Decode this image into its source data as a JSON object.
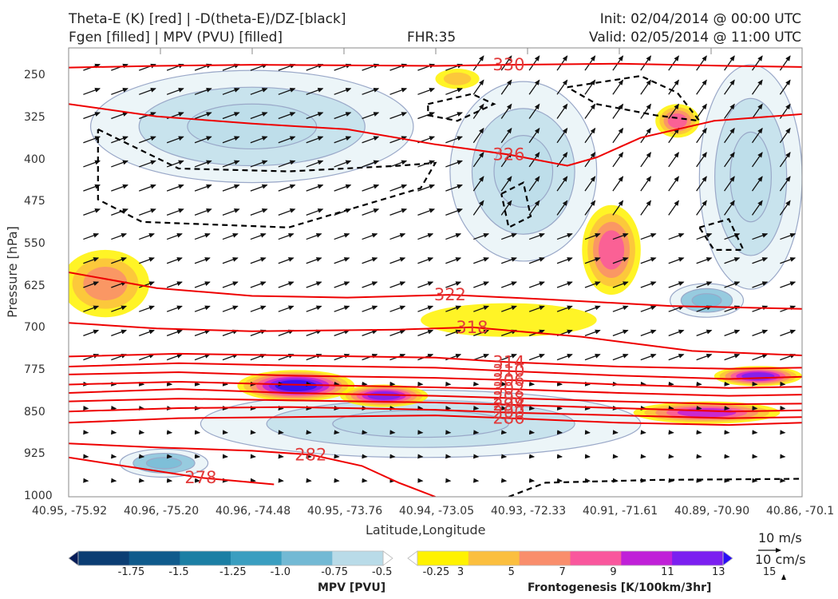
{
  "header": {
    "line1": "Theta-E (K) [red] | -D(theta-E)/DZ-[black]",
    "line2": "Fgen [filled] | MPV (PVU) [filled]",
    "fhr": "FHR:35",
    "init": "Init: 02/04/2014 @ 00:00 UTC",
    "valid": "Valid: 02/05/2014 @ 11:00 UTC"
  },
  "chart_data": {
    "type": "cross-section",
    "xlabel": "Latitude,Longitude",
    "ylabel": "Pressure [hPa]",
    "y_ticks": [
      250,
      325,
      400,
      475,
      550,
      625,
      700,
      775,
      850,
      925,
      1000
    ],
    "ylim": [
      1000,
      200
    ],
    "x_ticks": [
      "40.95, -75.92",
      "40.96, -75.20",
      "40.96, -74.48",
      "40.95, -73.76",
      "40.94, -73.05",
      "40.93, -72.33",
      "40.91, -71.61",
      "40.89, -70.90",
      "40.86, -70.1"
    ],
    "theta_e_contours": [
      {
        "label": "278",
        "pressure": [
          930,
          950,
          966,
          978
        ],
        "x": [
          0.0,
          0.1,
          0.18,
          0.28
        ]
      },
      {
        "label": "282",
        "pressure": [
          905,
          912,
          918,
          925,
          945,
          975,
          1000
        ],
        "x": [
          0.0,
          0.12,
          0.25,
          0.33,
          0.4,
          0.45,
          0.5
        ]
      },
      {
        "label": "286",
        "pressure": [
          868,
          860,
          858,
          855,
          860,
          868,
          872,
          868
        ],
        "x": [
          0.0,
          0.15,
          0.3,
          0.5,
          0.6,
          0.75,
          0.9,
          1.0
        ]
      },
      {
        "label": "290",
        "pressure": [
          848,
          842,
          840,
          845,
          850,
          855,
          860,
          858
        ],
        "x": [
          0.0,
          0.15,
          0.3,
          0.5,
          0.6,
          0.75,
          0.9,
          1.0
        ]
      },
      {
        "label": "294",
        "pressure": [
          830,
          825,
          828,
          832,
          836,
          842,
          848,
          846
        ],
        "x": [
          0.0,
          0.15,
          0.3,
          0.5,
          0.6,
          0.75,
          0.9,
          1.0
        ]
      },
      {
        "label": "298",
        "pressure": [
          815,
          808,
          815,
          820,
          824,
          830,
          835,
          834
        ],
        "x": [
          0.0,
          0.15,
          0.3,
          0.5,
          0.6,
          0.75,
          0.9,
          1.0
        ]
      },
      {
        "label": "302",
        "pressure": [
          800,
          795,
          800,
          805,
          808,
          815,
          820,
          818
        ],
        "x": [
          0.0,
          0.15,
          0.3,
          0.5,
          0.6,
          0.75,
          0.9,
          1.0
        ]
      },
      {
        "label": "306",
        "pressure": [
          782,
          778,
          784,
          788,
          792,
          800,
          806,
          804
        ],
        "x": [
          0.0,
          0.15,
          0.3,
          0.5,
          0.6,
          0.75,
          0.9,
          1.0
        ]
      },
      {
        "label": "310",
        "pressure": [
          768,
          762,
          766,
          770,
          776,
          784,
          790,
          786
        ],
        "x": [
          0.0,
          0.15,
          0.3,
          0.5,
          0.6,
          0.75,
          0.9,
          1.0
        ]
      },
      {
        "label": "314",
        "pressure": [
          750,
          745,
          748,
          752,
          760,
          768,
          772,
          770
        ],
        "x": [
          0.0,
          0.15,
          0.3,
          0.5,
          0.6,
          0.75,
          0.9,
          1.0
        ]
      },
      {
        "label": "318",
        "pressure": [
          690,
          700,
          705,
          702,
          698,
          715,
          740,
          748
        ],
        "x": [
          0.0,
          0.12,
          0.25,
          0.45,
          0.55,
          0.7,
          0.85,
          1.0
        ]
      },
      {
        "label": "322",
        "pressure": [
          600,
          628,
          642,
          645,
          640,
          648,
          660,
          665
        ],
        "x": [
          0.0,
          0.12,
          0.25,
          0.38,
          0.52,
          0.65,
          0.82,
          1.0
        ]
      },
      {
        "label": "326",
        "pressure": [
          300,
          322,
          335,
          345,
          372,
          390,
          410,
          395,
          360,
          330,
          318
        ],
        "x": [
          0.0,
          0.12,
          0.25,
          0.38,
          0.5,
          0.6,
          0.68,
          0.72,
          0.78,
          0.88,
          1.0
        ]
      },
      {
        "label": "330",
        "pressure": [
          235,
          232,
          230,
          232,
          230,
          228,
          232,
          234
        ],
        "x": [
          0.0,
          0.12,
          0.25,
          0.5,
          0.6,
          0.75,
          0.9,
          1.0
        ]
      }
    ],
    "fgen_blobs": [
      {
        "x": 0.31,
        "pressure": 802,
        "rx": 0.08,
        "rp": 28,
        "level": 14
      },
      {
        "x": 0.43,
        "pressure": 820,
        "rx": 0.06,
        "rp": 20,
        "level": 12
      },
      {
        "x": 0.87,
        "pressure": 850,
        "rx": 0.1,
        "rp": 20,
        "level": 10
      },
      {
        "x": 0.94,
        "pressure": 785,
        "rx": 0.06,
        "rp": 18,
        "level": 12
      },
      {
        "x": 0.74,
        "pressure": 560,
        "rx": 0.04,
        "rp": 80,
        "level": 9
      },
      {
        "x": 0.05,
        "pressure": 620,
        "rx": 0.06,
        "rp": 60,
        "level": 6
      },
      {
        "x": 0.53,
        "pressure": 255,
        "rx": 0.03,
        "rp": 18,
        "level": 5
      },
      {
        "x": 0.83,
        "pressure": 330,
        "rx": 0.03,
        "rp": 30,
        "level": 8
      },
      {
        "x": 0.6,
        "pressure": 685,
        "rx": 0.12,
        "rp": 30,
        "level": 3
      }
    ],
    "mpv_blobs": [
      {
        "x": 0.25,
        "pressure": 340,
        "rx": 0.22,
        "rp": 100,
        "level": -0.3
      },
      {
        "x": 0.62,
        "pressure": 420,
        "rx": 0.1,
        "rp": 160,
        "level": -0.3
      },
      {
        "x": 0.93,
        "pressure": 430,
        "rx": 0.07,
        "rp": 200,
        "level": -0.3
      },
      {
        "x": 0.48,
        "pressure": 870,
        "rx": 0.3,
        "rp": 60,
        "level": -0.5
      },
      {
        "x": 0.13,
        "pressure": 940,
        "rx": 0.06,
        "rp": 25,
        "level": -0.8
      },
      {
        "x": 0.87,
        "pressure": 650,
        "rx": 0.05,
        "rp": 30,
        "level": -0.6
      }
    ],
    "mpv_colorbar": {
      "title": "MPV [PVU]",
      "ticks": [
        "-1.75",
        "-1.5",
        "-1.25",
        "-1.0",
        "-0.75",
        "-0.5",
        "-0.25"
      ],
      "colors": [
        "#081d58",
        "#0b3d73",
        "#0f5a8c",
        "#1b7fa4",
        "#3a9ec0",
        "#73b9d4",
        "#b9dbe8",
        "#ffffff"
      ]
    },
    "fgen_colorbar": {
      "title": "Frontogenesis [K/100km/3hr]",
      "ticks": [
        "3",
        "5",
        "7",
        "9",
        "11",
        "13",
        "15"
      ],
      "colors": [
        "#ffffff",
        "#fff200",
        "#fbbf3f",
        "#f98e6c",
        "#f9579d",
        "#c020d8",
        "#7b1ff0",
        "#2a0ef5"
      ]
    },
    "vector_reference": {
      "line1": "10 m/s",
      "line2": "10 cm/s"
    },
    "colors": {
      "theta_e": "#ee0000",
      "ddz": "#000000",
      "mpv_outline": "#9aa8c8"
    }
  }
}
